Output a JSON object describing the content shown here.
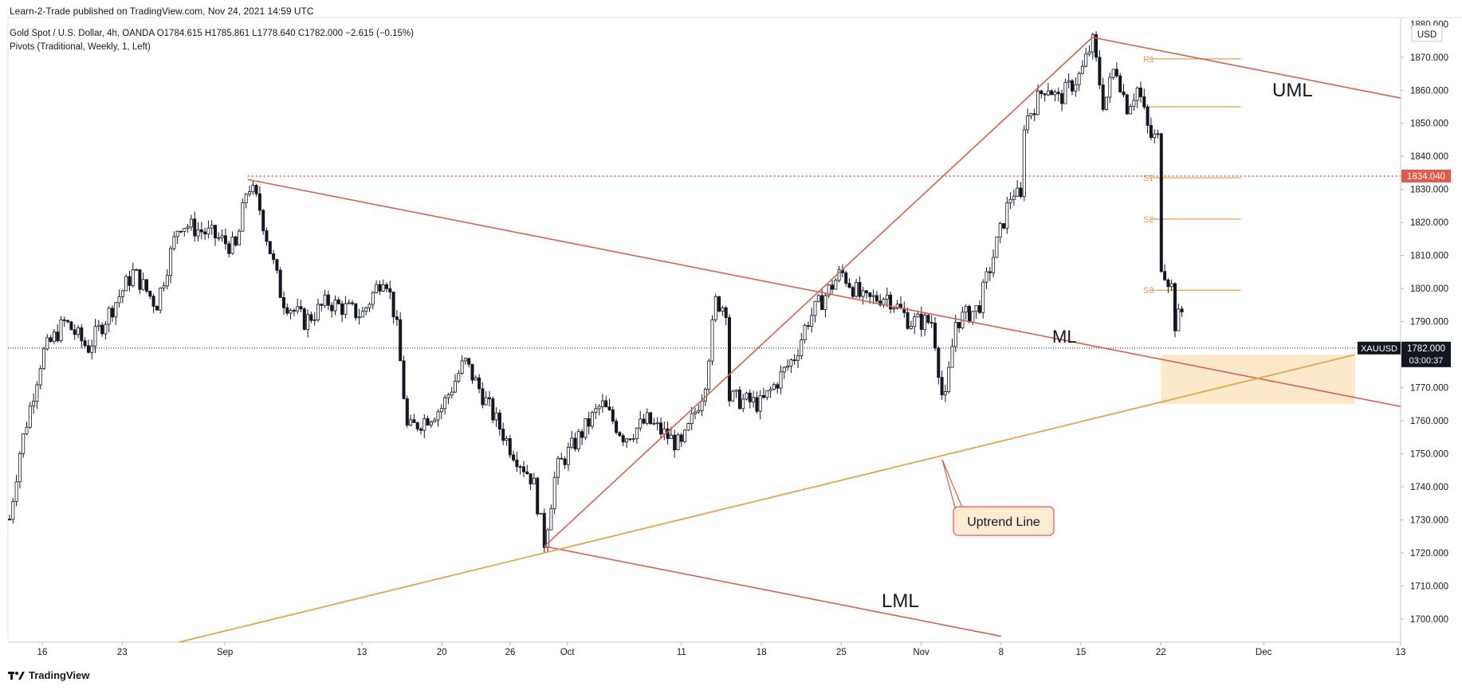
{
  "publish_header": "Learn-2-Trade published on TradingView.com, Nov 24, 2021 14:59 UTC",
  "legend": {
    "symbol_line": "Gold Spot / U.S. Dollar, 4h, OANDA  O1784.615  H1785.861  L1778.640  C1782.000  −2.615 (−0.15%)",
    "indicator_line": "Pivots (Traditional, Weekly, 1, Left)"
  },
  "currency_label": "USD",
  "brand": "TradingView",
  "colors": {
    "pitchfork": "#d9604f",
    "uptrend": "#e6a548",
    "pivot": "#e2a04b",
    "candle": "#131722",
    "zone_fill": "#fbe4c2",
    "price_tag": "#131722",
    "level_tag": "#e05a4a"
  },
  "chart_data": {
    "type": "candlestick",
    "symbol": "XAUUSD",
    "interval": "4h",
    "ohlc": {
      "open": 1784.615,
      "high": 1785.861,
      "low": 1778.64,
      "close": 1782.0,
      "change": -2.615,
      "change_pct": -0.15
    },
    "y_axis": {
      "range": [
        1693,
        1882
      ],
      "ticks": [
        "1870.000",
        "1860.000",
        "1850.000",
        "1840.000",
        "1830.000",
        "1820.000",
        "1810.000",
        "1800.000",
        "1790.000",
        "1780.000",
        "1770.000",
        "1760.000",
        "1750.000",
        "1740.000",
        "1730.000",
        "1720.000",
        "1710.000",
        "1700.000"
      ],
      "top_clipped_label": "1880.000"
    },
    "x_axis": {
      "range": [
        "2021-08-13",
        "2021-12-13"
      ],
      "ticks": [
        {
          "label": "16",
          "date": "2021-08-16"
        },
        {
          "label": "23",
          "date": "2021-08-23"
        },
        {
          "label": "Sep",
          "date": "2021-09-01"
        },
        {
          "label": "13",
          "date": "2021-09-13"
        },
        {
          "label": "20",
          "date": "2021-09-20"
        },
        {
          "label": "26",
          "date": "2021-09-26"
        },
        {
          "label": "Oct",
          "date": "2021-10-01"
        },
        {
          "label": "11",
          "date": "2021-10-11"
        },
        {
          "label": "18",
          "date": "2021-10-18"
        },
        {
          "label": "25",
          "date": "2021-10-25"
        },
        {
          "label": "Nov",
          "date": "2021-11-01"
        },
        {
          "label": "8",
          "date": "2021-11-08"
        },
        {
          "label": "15",
          "date": "2021-11-15"
        },
        {
          "label": "22",
          "date": "2021-11-22"
        },
        {
          "label": "Dec",
          "date": "2021-12-01"
        },
        {
          "label": "13",
          "date": "2021-12-13"
        }
      ]
    },
    "price_path": [
      {
        "date": "2021-08-13",
        "price": 1727
      },
      {
        "date": "2021-08-14",
        "price": 1750
      },
      {
        "date": "2021-08-16",
        "price": 1780
      },
      {
        "date": "2021-08-18",
        "price": 1790
      },
      {
        "date": "2021-08-20",
        "price": 1782
      },
      {
        "date": "2021-08-24",
        "price": 1805
      },
      {
        "date": "2021-08-26",
        "price": 1795
      },
      {
        "date": "2021-08-28",
        "price": 1820
      },
      {
        "date": "2021-08-31",
        "price": 1816
      },
      {
        "date": "2021-09-02",
        "price": 1812
      },
      {
        "date": "2021-09-03",
        "price": 1832
      },
      {
        "date": "2021-09-04",
        "price": 1825
      },
      {
        "date": "2021-09-06",
        "price": 1797
      },
      {
        "date": "2021-09-08",
        "price": 1790
      },
      {
        "date": "2021-09-10",
        "price": 1796
      },
      {
        "date": "2021-09-13",
        "price": 1792
      },
      {
        "date": "2021-09-15",
        "price": 1805
      },
      {
        "date": "2021-09-16",
        "price": 1790
      },
      {
        "date": "2021-09-17",
        "price": 1757
      },
      {
        "date": "2021-09-20",
        "price": 1764
      },
      {
        "date": "2021-09-22",
        "price": 1778
      },
      {
        "date": "2021-09-24",
        "price": 1765
      },
      {
        "date": "2021-09-26",
        "price": 1752
      },
      {
        "date": "2021-09-28",
        "price": 1742
      },
      {
        "date": "2021-09-29",
        "price": 1723
      },
      {
        "date": "2021-09-30",
        "price": 1745
      },
      {
        "date": "2021-10-04",
        "price": 1765
      },
      {
        "date": "2021-10-06",
        "price": 1755
      },
      {
        "date": "2021-10-08",
        "price": 1760
      },
      {
        "date": "2021-10-11",
        "price": 1752
      },
      {
        "date": "2021-10-13",
        "price": 1770
      },
      {
        "date": "2021-10-14",
        "price": 1796
      },
      {
        "date": "2021-10-15",
        "price": 1794
      },
      {
        "date": "2021-10-15",
        "price": 1767
      },
      {
        "date": "2021-10-18",
        "price": 1765
      },
      {
        "date": "2021-10-21",
        "price": 1780
      },
      {
        "date": "2021-10-22",
        "price": 1790
      },
      {
        "date": "2021-10-25",
        "price": 1805
      },
      {
        "date": "2021-10-27",
        "price": 1796
      },
      {
        "date": "2021-10-29",
        "price": 1798
      },
      {
        "date": "2021-10-31",
        "price": 1790
      },
      {
        "date": "2021-11-02",
        "price": 1790
      },
      {
        "date": "2021-11-03",
        "price": 1763
      },
      {
        "date": "2021-11-04",
        "price": 1790
      },
      {
        "date": "2021-11-06",
        "price": 1794
      },
      {
        "date": "2021-11-08",
        "price": 1818
      },
      {
        "date": "2021-11-09",
        "price": 1830
      },
      {
        "date": "2021-11-10",
        "price": 1825
      },
      {
        "date": "2021-11-10",
        "price": 1850
      },
      {
        "date": "2021-11-12",
        "price": 1862
      },
      {
        "date": "2021-11-13",
        "price": 1857
      },
      {
        "date": "2021-11-15",
        "price": 1865
      },
      {
        "date": "2021-11-16",
        "price": 1875
      },
      {
        "date": "2021-11-17",
        "price": 1855
      },
      {
        "date": "2021-11-18",
        "price": 1868
      },
      {
        "date": "2021-11-19",
        "price": 1855
      },
      {
        "date": "2021-11-20",
        "price": 1861
      },
      {
        "date": "2021-11-21",
        "price": 1846
      },
      {
        "date": "2021-11-22",
        "price": 1845
      },
      {
        "date": "2021-11-22",
        "price": 1808
      },
      {
        "date": "2021-11-23",
        "price": 1800
      },
      {
        "date": "2021-11-23",
        "price": 1788
      },
      {
        "date": "2021-11-24",
        "price": 1794
      },
      {
        "date": "2021-11-24",
        "price": 1782
      }
    ],
    "pivots": [
      {
        "label": "R1",
        "value": 1869.5
      },
      {
        "label": "P",
        "value": 1855
      },
      {
        "label": "S1",
        "value": 1833.5
      },
      {
        "label": "S2",
        "value": 1821
      },
      {
        "label": "S3",
        "value": 1799.5
      }
    ],
    "pivot_dates": [
      "2021-11-21",
      "2021-11-29"
    ],
    "pitchfork": {
      "pivot_a": {
        "date": "2021-09-03",
        "price": 1833
      },
      "pivot_b": {
        "date": "2021-09-29",
        "price": 1722
      },
      "pivot_c": {
        "date": "2021-11-16",
        "price": 1876
      },
      "end_date": "2021-12-13"
    },
    "uptrend_line": {
      "start": {
        "date": "2021-08-28",
        "price": 1693
      },
      "end": {
        "date": "2021-12-09",
        "price": 1780
      }
    },
    "support_zone": {
      "date_range": [
        "2021-11-22",
        "2021-12-09"
      ],
      "price_range": [
        1765,
        1780
      ]
    },
    "horizontal_level": {
      "price": 1834.04,
      "from_date": "2021-09-03",
      "label": "1834.040"
    },
    "current_price": {
      "price": 1782.0,
      "label": "1782.000",
      "countdown": "03:00:37",
      "symbol": "XAUUSD"
    },
    "annotations": {
      "uml": "UML",
      "ml": "ML",
      "lml": "LML",
      "callout": "Uptrend Line"
    }
  }
}
